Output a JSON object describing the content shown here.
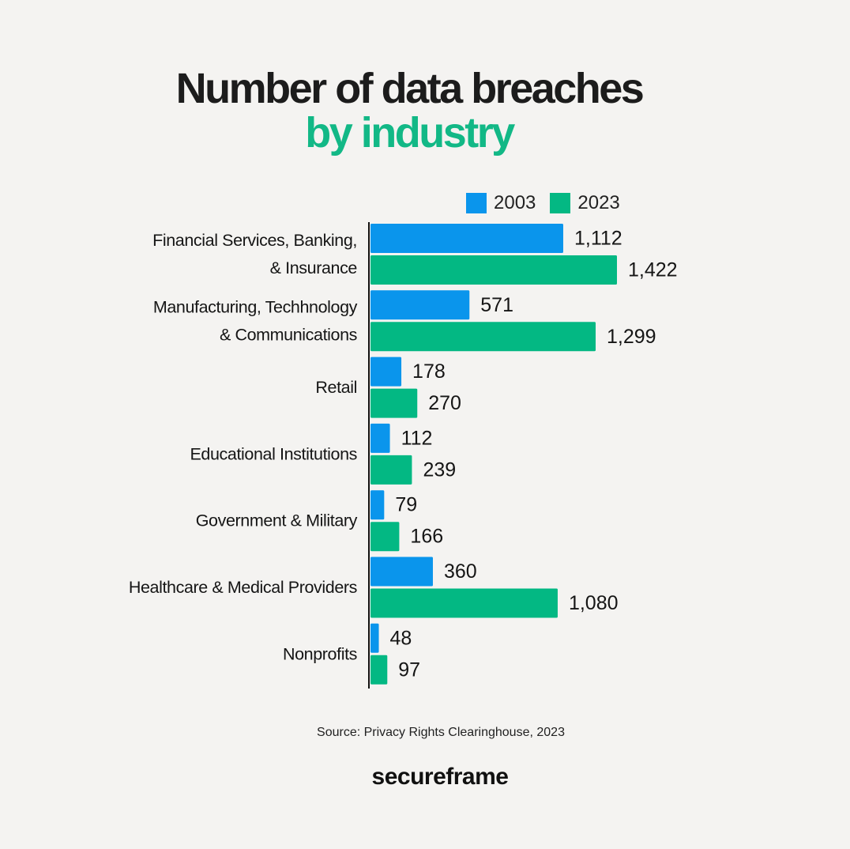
{
  "chart_data": {
    "type": "bar",
    "orientation": "horizontal",
    "title": "Number of data breaches",
    "subtitle": "by industry",
    "categories": [
      [
        "Financial Services, Banking,",
        "& Insurance"
      ],
      [
        "Manufacturing, Techhnology",
        "& Communications"
      ],
      [
        "Retail"
      ],
      [
        "Educational Institutions"
      ],
      [
        "Government & Military"
      ],
      [
        "Healthcare & Medical Providers"
      ],
      [
        "Nonprofits"
      ]
    ],
    "series": [
      {
        "name": "2003",
        "color": "#0a95ec",
        "values": [
          1112,
          571,
          178,
          112,
          79,
          360,
          48
        ],
        "labels": [
          "1,112",
          "571",
          "178",
          "112",
          "79",
          "360",
          "48"
        ]
      },
      {
        "name": "2023",
        "color": "#03b883",
        "values": [
          1422,
          1299,
          270,
          239,
          166,
          1080,
          97
        ],
        "labels": [
          "1,422",
          "1,299",
          "270",
          "239",
          "166",
          "1,080",
          "97"
        ]
      }
    ],
    "xlim": [
      0,
      1422
    ],
    "grid": false,
    "legend": "top-right",
    "source": "Source: Privacy Rights Clearinghouse, 2023"
  },
  "brand": "secureframe"
}
